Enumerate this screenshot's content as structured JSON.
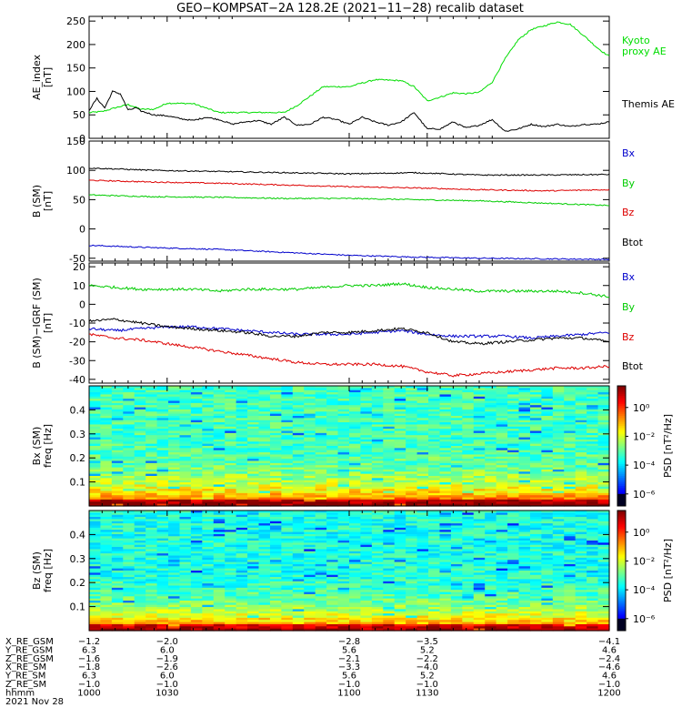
{
  "chart_data": [
    {
      "type": "line",
      "title": "GEO−KOMPSAT−2A 128.2E (2021−11−28) recalib dataset",
      "ylabel": [
        "AE_index",
        "[nT]"
      ],
      "ylim": [
        0,
        260
      ],
      "yticks": [
        "0",
        "50",
        "100",
        "150",
        "200",
        "250"
      ],
      "xlim": [
        1000,
        1200
      ],
      "series": [
        {
          "name": "Kyoto proxy AE",
          "label_lines": [
            "Kyoto",
            "proxy AE"
          ],
          "color": "#00dd00",
          "x": [
            1000,
            1005,
            1010,
            1015,
            1020,
            1025,
            1030,
            1040,
            1050,
            1060,
            1062,
            1068,
            1075,
            1080,
            1090,
            1100,
            1105,
            1110,
            1120,
            1125,
            1130,
            1135,
            1140,
            1145,
            1150,
            1155,
            1160,
            1165,
            1170,
            1180,
            1185,
            1190,
            1195,
            1198,
            1200
          ],
          "y": [
            55,
            57,
            65,
            72,
            62,
            62,
            75,
            74,
            55,
            55,
            55,
            55,
            55,
            70,
            110,
            110,
            118,
            125,
            123,
            110,
            80,
            88,
            97,
            95,
            98,
            120,
            170,
            210,
            232,
            248,
            243,
            220,
            195,
            182,
            175
          ]
        },
        {
          "name": "Themis AE",
          "label_lines": [
            "Themis AE"
          ],
          "color": "#000000",
          "x": [
            1000,
            1003,
            1006,
            1009,
            1012,
            1015,
            1018,
            1020,
            1025,
            1030,
            1035,
            1040,
            1045,
            1050,
            1055,
            1060,
            1065,
            1070,
            1075,
            1080,
            1085,
            1090,
            1095,
            1100,
            1105,
            1110,
            1115,
            1120,
            1125,
            1130,
            1135,
            1140,
            1145,
            1150,
            1155,
            1160,
            1165,
            1170,
            1175,
            1180,
            1185,
            1190,
            1195,
            1200
          ],
          "y": [
            60,
            85,
            65,
            100,
            95,
            60,
            65,
            58,
            50,
            48,
            42,
            38,
            45,
            40,
            30,
            35,
            38,
            30,
            45,
            28,
            30,
            45,
            40,
            30,
            45,
            35,
            28,
            35,
            55,
            20,
            20,
            35,
            22,
            28,
            40,
            15,
            20,
            30,
            25,
            30,
            25,
            30,
            30,
            35
          ]
        }
      ]
    },
    {
      "type": "line",
      "ylabel": [
        "B (SM)",
        "[nT]"
      ],
      "ylim": [
        -55,
        150
      ],
      "yticks": [
        "-50",
        "0",
        "50",
        "100",
        "150"
      ],
      "xlim": [
        1000,
        1200
      ],
      "series": [
        {
          "name": "Bx",
          "color": "#0000cc",
          "x": [
            1000,
            1025,
            1050,
            1075,
            1100,
            1125,
            1150,
            1175,
            1200
          ],
          "y": [
            -28,
            -32,
            -35,
            -40,
            -45,
            -48,
            -50,
            -51,
            -52
          ]
        },
        {
          "name": "By",
          "color": "#00cc00",
          "x": [
            1000,
            1025,
            1050,
            1075,
            1100,
            1125,
            1150,
            1175,
            1200
          ],
          "y": [
            58,
            55,
            54,
            52,
            52,
            50,
            48,
            44,
            40
          ]
        },
        {
          "name": "Bz",
          "color": "#dd0000",
          "x": [
            1000,
            1025,
            1050,
            1075,
            1100,
            1125,
            1150,
            1175,
            1200
          ],
          "y": [
            83,
            80,
            78,
            75,
            72,
            70,
            67,
            65,
            67
          ]
        },
        {
          "name": "Btot",
          "color": "#000000",
          "x": [
            1000,
            1025,
            1050,
            1075,
            1100,
            1125,
            1150,
            1175,
            1200
          ],
          "y": [
            104,
            100,
            98,
            96,
            94,
            96,
            92,
            92,
            93
          ]
        }
      ]
    },
    {
      "type": "line",
      "ylabel": [
        "B (SM)−IGRF (SM)",
        "[nT]"
      ],
      "ylim": [
        -42,
        22
      ],
      "yticks": [
        "-40",
        "-30",
        "-20",
        "-10",
        "0",
        "10",
        "20"
      ],
      "xlim": [
        1000,
        1200
      ],
      "series": [
        {
          "name": "Bx",
          "color": "#0000cc",
          "x": [
            1000,
            1010,
            1020,
            1030,
            1040,
            1050,
            1060,
            1070,
            1080,
            1090,
            1100,
            1110,
            1120,
            1130,
            1140,
            1150,
            1160,
            1170,
            1180,
            1190,
            1200
          ],
          "y": [
            -13,
            -14,
            -13,
            -12,
            -12,
            -13,
            -14,
            -15,
            -16,
            -16,
            -16,
            -15,
            -14,
            -16,
            -17,
            -17,
            -17,
            -18,
            -17,
            -16,
            -15
          ]
        },
        {
          "name": "By",
          "color": "#00cc00",
          "x": [
            1000,
            1010,
            1020,
            1030,
            1040,
            1050,
            1060,
            1070,
            1080,
            1090,
            1100,
            1110,
            1120,
            1130,
            1140,
            1150,
            1160,
            1170,
            1180,
            1190,
            1200
          ],
          "y": [
            10,
            9,
            8,
            8,
            8,
            7,
            8,
            8,
            8,
            9,
            10,
            10,
            11,
            9,
            8,
            7,
            7,
            7,
            7,
            6,
            4
          ]
        },
        {
          "name": "Bz",
          "color": "#dd0000",
          "x": [
            1000,
            1010,
            1020,
            1030,
            1040,
            1050,
            1060,
            1070,
            1080,
            1090,
            1100,
            1110,
            1120,
            1130,
            1140,
            1150,
            1160,
            1170,
            1180,
            1190,
            1200
          ],
          "y": [
            -16,
            -18,
            -19,
            -21,
            -23,
            -25,
            -27,
            -29,
            -31,
            -32,
            -32,
            -32,
            -33,
            -36,
            -38,
            -37,
            -36,
            -35,
            -34,
            -34,
            -33
          ]
        },
        {
          "name": "Btot",
          "color": "#000000",
          "x": [
            1000,
            1010,
            1020,
            1030,
            1040,
            1050,
            1060,
            1070,
            1080,
            1090,
            1100,
            1110,
            1120,
            1130,
            1140,
            1150,
            1160,
            1170,
            1180,
            1190,
            1200
          ],
          "y": [
            -9,
            -8,
            -10,
            -12,
            -13,
            -14,
            -15,
            -17,
            -17,
            -15,
            -15,
            -14,
            -13,
            -15,
            -20,
            -21,
            -20,
            -19,
            -18,
            -18,
            -20
          ]
        }
      ]
    },
    {
      "type": "heatmap",
      "ylabel": [
        "Bx (SM)",
        "freq [Hz]"
      ],
      "ylim": [
        0.0,
        0.5
      ],
      "yticks": [
        "0.1",
        "0.2",
        "0.3",
        "0.4"
      ],
      "colorbar": {
        "label": "PSD [nT²/Hz]",
        "ticks": [
          "10⁰",
          "10⁻²",
          "10⁻⁴",
          "10⁻⁶"
        ]
      }
    },
    {
      "type": "heatmap",
      "ylabel": [
        "Bz (SM)",
        "freq [Hz]"
      ],
      "ylim": [
        0.0,
        0.5
      ],
      "yticks": [
        "0.1",
        "0.2",
        "0.3",
        "0.4"
      ],
      "colorbar": {
        "label": "PSD [nT²/Hz]",
        "ticks": [
          "10⁰",
          "10⁻²",
          "10⁻⁴",
          "10⁻⁶"
        ]
      }
    }
  ],
  "ephemeris": {
    "labels": [
      "X_RE_GSM",
      "Y_RE_GSM",
      "Z_RE_GSM",
      "X_RE_SM",
      "Y_RE_SM",
      "Z_RE_SM",
      "hhmm",
      "2021 Nov 28"
    ],
    "columns": [
      [
        "−1.2",
        "6.3",
        "−1.6",
        "−1.8",
        "6.3",
        "−1.0",
        "1000"
      ],
      [
        "−2.0",
        "6.0",
        "−1.9",
        "−2.6",
        "6.0",
        "−1.0",
        "1030"
      ],
      [
        "−2.8",
        "5.6",
        "−2.1",
        "−3.3",
        "5.6",
        "−1.0",
        "1100"
      ],
      [
        "−3.5",
        "5.2",
        "−2.2",
        "−4.0",
        "5.2",
        "−1.0",
        "1130"
      ],
      [
        "−4.1",
        "4.6",
        "−2.4",
        "−4.6",
        "4.6",
        "−1.0",
        "1200"
      ]
    ]
  }
}
